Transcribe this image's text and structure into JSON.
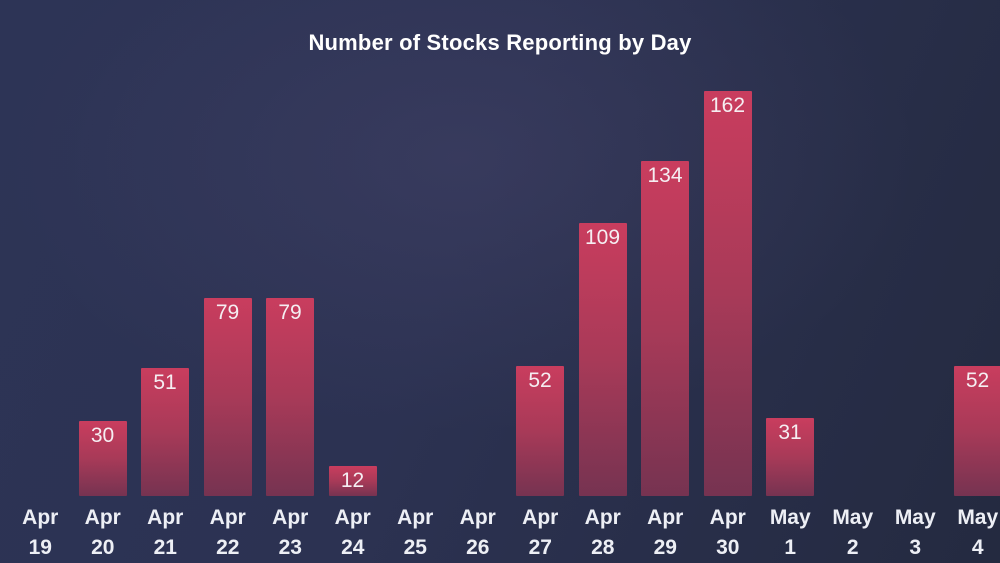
{
  "title": "Number of Stocks Reporting by Day",
  "colors": {
    "background_base": "#2b3150",
    "bar_gradient_top": "#c93d5e",
    "bar_gradient_mid": "#a83a58",
    "bar_gradient_bottom": "#763351",
    "title_text": "#ffffff",
    "axis_label_text": "#edeff5",
    "value_label_text": "#f5eef2"
  },
  "chart_data": {
    "type": "bar",
    "title": "Number of Stocks Reporting by Day",
    "categories": [
      "Apr 19",
      "Apr 20",
      "Apr 21",
      "Apr 22",
      "Apr 23",
      "Apr 24",
      "Apr 25",
      "Apr 26",
      "Apr 27",
      "Apr 28",
      "Apr 29",
      "Apr 30",
      "May 1",
      "May 2",
      "May 3",
      "May 4"
    ],
    "values": [
      0,
      30,
      51,
      79,
      79,
      12,
      0,
      0,
      52,
      109,
      134,
      162,
      31,
      0,
      0,
      52
    ],
    "xlabel": "",
    "ylabel": "",
    "ylim": [
      0,
      170
    ],
    "grid": false,
    "legend": false,
    "value_labels": "inside-top",
    "bar_style": "vertical crimson gradient on dark navy background, no axis lines"
  }
}
